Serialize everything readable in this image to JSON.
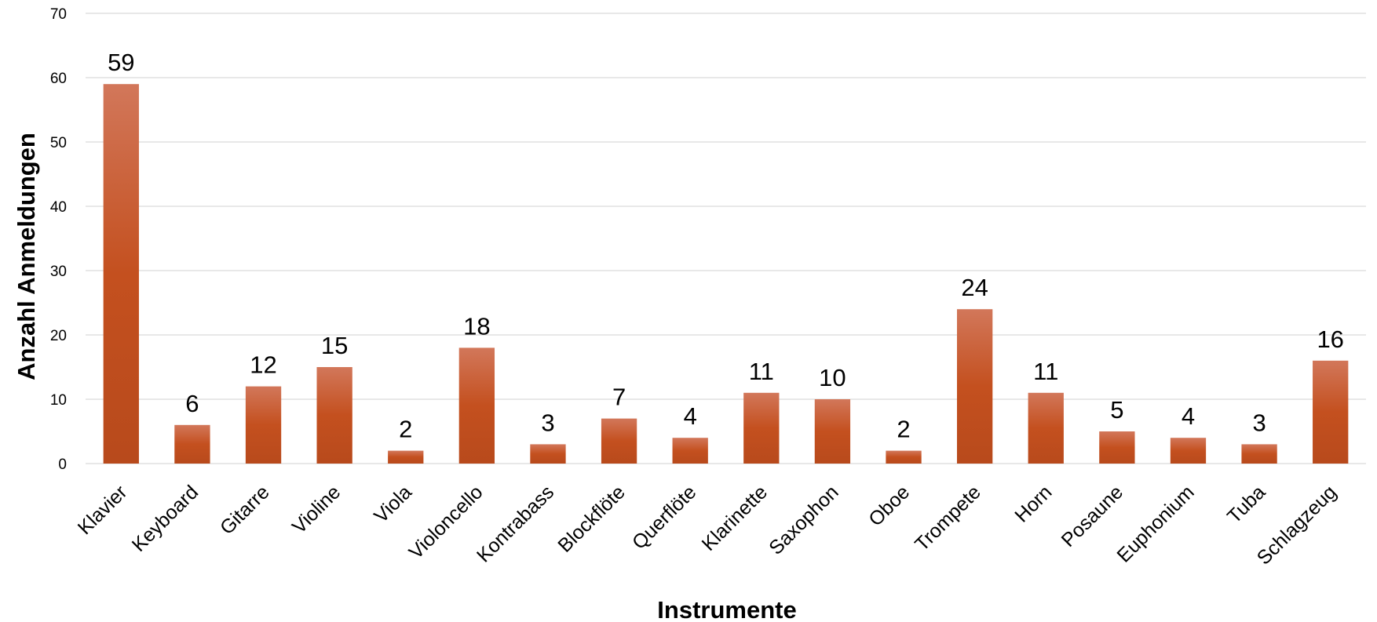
{
  "chart_data": {
    "type": "bar",
    "title": "",
    "xlabel": "Instrumente",
    "ylabel": "Anzahl Anmeldungen",
    "ylim": [
      0,
      70
    ],
    "yticks": [
      0,
      10,
      20,
      30,
      40,
      50,
      60,
      70
    ],
    "grid": true,
    "categories": [
      "Klavier",
      "Keyboard",
      "Gitarre",
      "Violine",
      "Viola",
      "Violoncello",
      "Kontrabass",
      "Blockflöte",
      "Querflöte",
      "Klarinette",
      "Saxophon",
      "Oboe",
      "Trompete",
      "Horn",
      "Posaune",
      "Euphonium",
      "Tuba",
      "Schlagzeug"
    ],
    "values": [
      59,
      6,
      12,
      15,
      2,
      18,
      3,
      7,
      4,
      11,
      10,
      2,
      24,
      11,
      5,
      4,
      3,
      16
    ],
    "colors": {
      "bar_top": "#d2775a",
      "bar_mid": "#c4501f",
      "bar_bottom": "#b84a1c",
      "grid": "#d9d9d9"
    }
  }
}
